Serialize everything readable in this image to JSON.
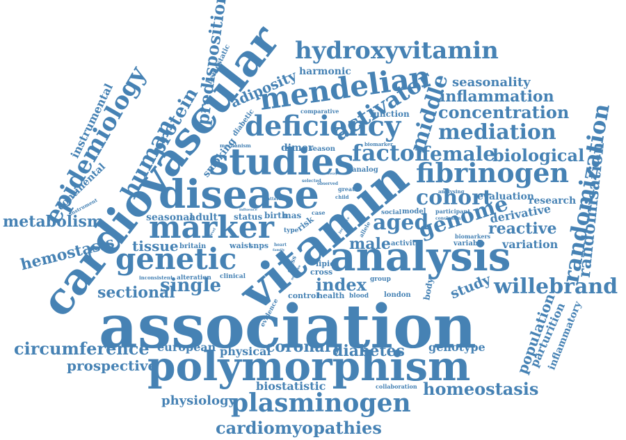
{
  "color": "#4682b4",
  "words": [
    "association",
    "polymorphism",
    "analysis",
    "vitamin",
    "cardiovascular",
    "disease",
    "studies",
    "marker",
    "deficiency",
    "genetic",
    "mendelian",
    "plasminogen",
    "fibrinogen",
    "hydroxyvitamin",
    "randomization",
    "epidemiology",
    "willebrand",
    "genome",
    "aged",
    "cohort",
    "factor",
    "mediation",
    "concentration",
    "inflammation",
    "biological",
    "female",
    "activator",
    "middle",
    "human",
    "protein",
    "predisposition",
    "adiposity",
    "cardiomyopathies",
    "circumference",
    "metabolism",
    "randomisation",
    "homeostasis",
    "coronary",
    "index",
    "single",
    "sectional",
    "hemostasis",
    "prospective",
    "reactive",
    "diabetes",
    "male",
    "tissue",
    "population",
    "seasonality",
    "physiology",
    "european",
    "physical",
    "biostatistic",
    "genotype",
    "study",
    "variation",
    "evaluation",
    "research",
    "derivative",
    "instrumental",
    "continental",
    "seasonal",
    "adult",
    "parturition",
    "inflammatory",
    "harmonic",
    "hemostatic",
    "smoking",
    "diabetic",
    "dimer",
    "season",
    "analog",
    "function",
    "comparative",
    "biomarker",
    "mechanism",
    "status",
    "birth",
    "mas",
    "risk",
    "waist",
    "snps",
    "britain",
    "lipid",
    "cross",
    "control",
    "health",
    "blood",
    "london",
    "group",
    "body",
    "clinical",
    "alteration",
    "inconsistent",
    "class",
    "type",
    "pattern",
    "selected",
    "observed",
    "great",
    "child",
    "case",
    "social",
    "model",
    "participant",
    "conclusion",
    "analysing",
    "biomarkers",
    "variable",
    "activity",
    "allele",
    "evidence",
    "collaboration",
    "instrument",
    "influence",
    "heart",
    "family",
    "level",
    "incidence",
    "outcome",
    "assay"
  ]
}
